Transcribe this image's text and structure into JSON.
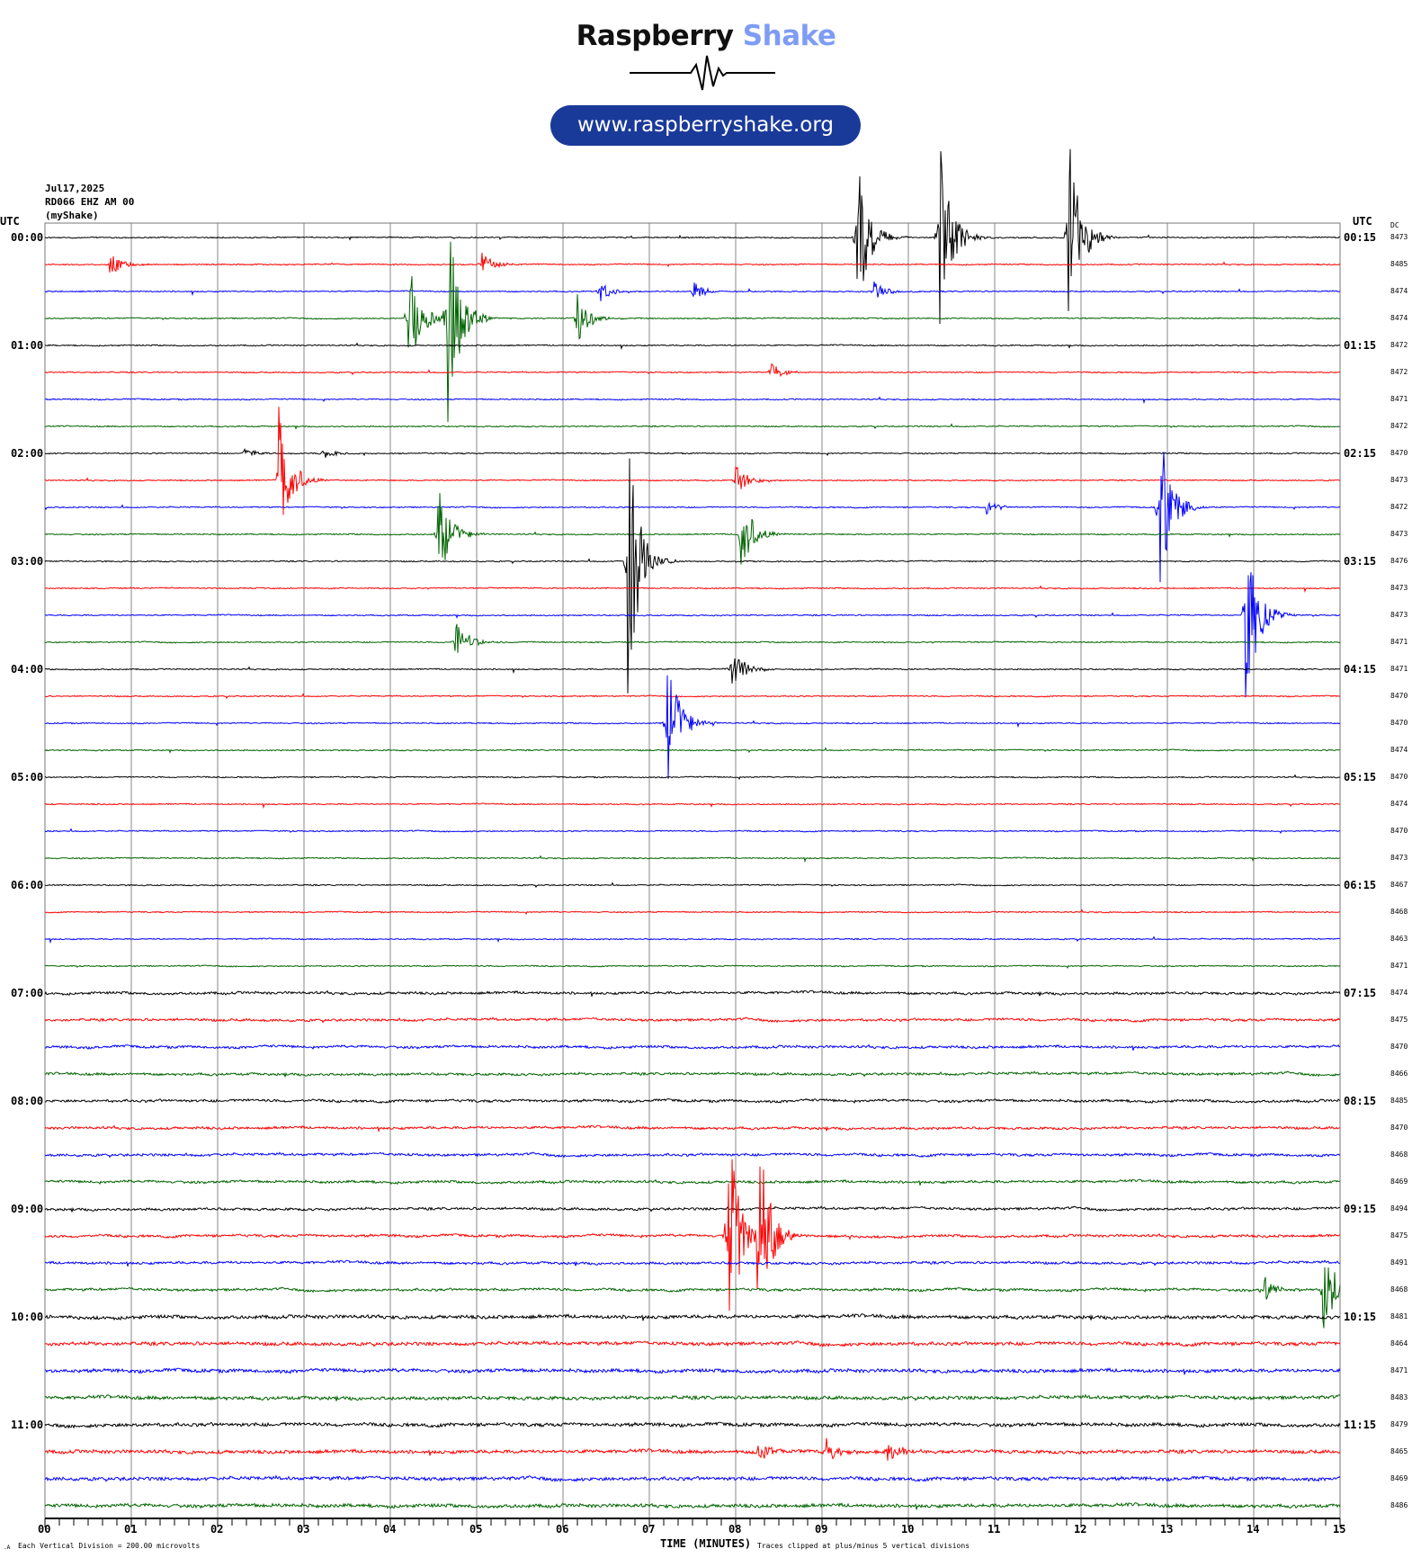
{
  "logo": {
    "word1": "Raspberry",
    "word2": "Shake",
    "url": "www.raspberryshake.org",
    "colors": {
      "word1": "#111111",
      "word2": "#7f9cf5",
      "pill": "#1a3a9a"
    }
  },
  "header": {
    "date": "Jul17,2025",
    "station": "RD066 EHZ AM 00",
    "network": "(myShake)"
  },
  "chart_data": {
    "type": "line",
    "title": "",
    "xlabel": "TIME (MINUTES)",
    "xlim": [
      0,
      15
    ],
    "x_ticks": [
      "00",
      "01",
      "02",
      "03",
      "04",
      "05",
      "06",
      "07",
      "08",
      "09",
      "10",
      "11",
      "12",
      "13",
      "14",
      "15"
    ],
    "left_axis_title": "UTC",
    "right_axis_title": "UTC",
    "dc_title": "DC",
    "left_labels": [
      "00:00",
      "01:00",
      "02:00",
      "03:00",
      "04:00",
      "05:00",
      "06:00",
      "07:00",
      "08:00",
      "09:00",
      "10:00",
      "11:00"
    ],
    "right_labels": [
      "00:15",
      "01:15",
      "02:15",
      "03:15",
      "04:15",
      "05:15",
      "06:15",
      "07:15",
      "08:15",
      "09:15",
      "10:15",
      "11:15"
    ],
    "trace_colors": [
      "#000000",
      "#ff0000",
      "#0000ff",
      "#006400"
    ],
    "dc_values": [
      "8473",
      "8485",
      "8474",
      "8474",
      "8472",
      "8472",
      "8471",
      "8472",
      "8470",
      "8473",
      "8472",
      "8473",
      "8476",
      "8473",
      "8473",
      "8471",
      "8471",
      "8470",
      "8470",
      "8474",
      "8470",
      "8474",
      "8470",
      "8473",
      "8467",
      "8468",
      "8463",
      "8471",
      "8474",
      "8475",
      "8470",
      "8466",
      "8485",
      "8470",
      "8468",
      "8469",
      "8494",
      "8475",
      "8491",
      "8468",
      "8481",
      "8464",
      "8471",
      "8483",
      "8479",
      "8465",
      "8469",
      "8486"
    ],
    "clip_divisions": 5,
    "events": [
      {
        "row": 0,
        "minute": 9.4,
        "amp": 3.2
      },
      {
        "row": 0,
        "minute": 10.35,
        "amp": 4.5
      },
      {
        "row": 0,
        "minute": 11.85,
        "amp": 4.3
      },
      {
        "row": 1,
        "minute": 0.75,
        "amp": 0.5
      },
      {
        "row": 1,
        "minute": 5.05,
        "amp": 0.5
      },
      {
        "row": 2,
        "minute": 6.4,
        "amp": 0.5
      },
      {
        "row": 2,
        "minute": 7.5,
        "amp": 0.4
      },
      {
        "row": 2,
        "minute": 9.6,
        "amp": 0.4
      },
      {
        "row": 3,
        "minute": 4.2,
        "amp": 2.5
      },
      {
        "row": 3,
        "minute": 4.65,
        "amp": 5
      },
      {
        "row": 3,
        "minute": 6.15,
        "amp": 1.1
      },
      {
        "row": 5,
        "minute": 8.4,
        "amp": 0.4
      },
      {
        "row": 8,
        "minute": 2.3,
        "amp": 0.25
      },
      {
        "row": 8,
        "minute": 3.2,
        "amp": 0.25
      },
      {
        "row": 9,
        "minute": 2.7,
        "amp": 3
      },
      {
        "row": 9,
        "minute": 8.0,
        "amp": 0.6
      },
      {
        "row": 10,
        "minute": 10.9,
        "amp": 0.3
      },
      {
        "row": 10,
        "minute": 12.9,
        "amp": 3.5
      },
      {
        "row": 11,
        "minute": 4.55,
        "amp": 2
      },
      {
        "row": 11,
        "minute": 8.05,
        "amp": 1.8
      },
      {
        "row": 12,
        "minute": 6.75,
        "amp": 5
      },
      {
        "row": 14,
        "minute": 13.9,
        "amp": 4
      },
      {
        "row": 15,
        "minute": 4.75,
        "amp": 1
      },
      {
        "row": 16,
        "minute": 7.95,
        "amp": 0.9
      },
      {
        "row": 18,
        "minute": 7.2,
        "amp": 2.8
      },
      {
        "row": 37,
        "minute": 7.9,
        "amp": 5
      },
      {
        "row": 37,
        "minute": 8.25,
        "amp": 5
      },
      {
        "row": 39,
        "minute": 14.1,
        "amp": 0.6
      },
      {
        "row": 39,
        "minute": 14.8,
        "amp": 2.5
      },
      {
        "row": 45,
        "minute": 8.25,
        "amp": 0.5
      },
      {
        "row": 45,
        "minute": 9.05,
        "amp": 0.6
      },
      {
        "row": 45,
        "minute": 9.75,
        "amp": 0.6
      }
    ]
  },
  "footer": {
    "scale": "Each Vertical Division =  200.00 microvolts",
    "clip_note": "Traces clipped at plus/minus 5 vertical divisions"
  }
}
